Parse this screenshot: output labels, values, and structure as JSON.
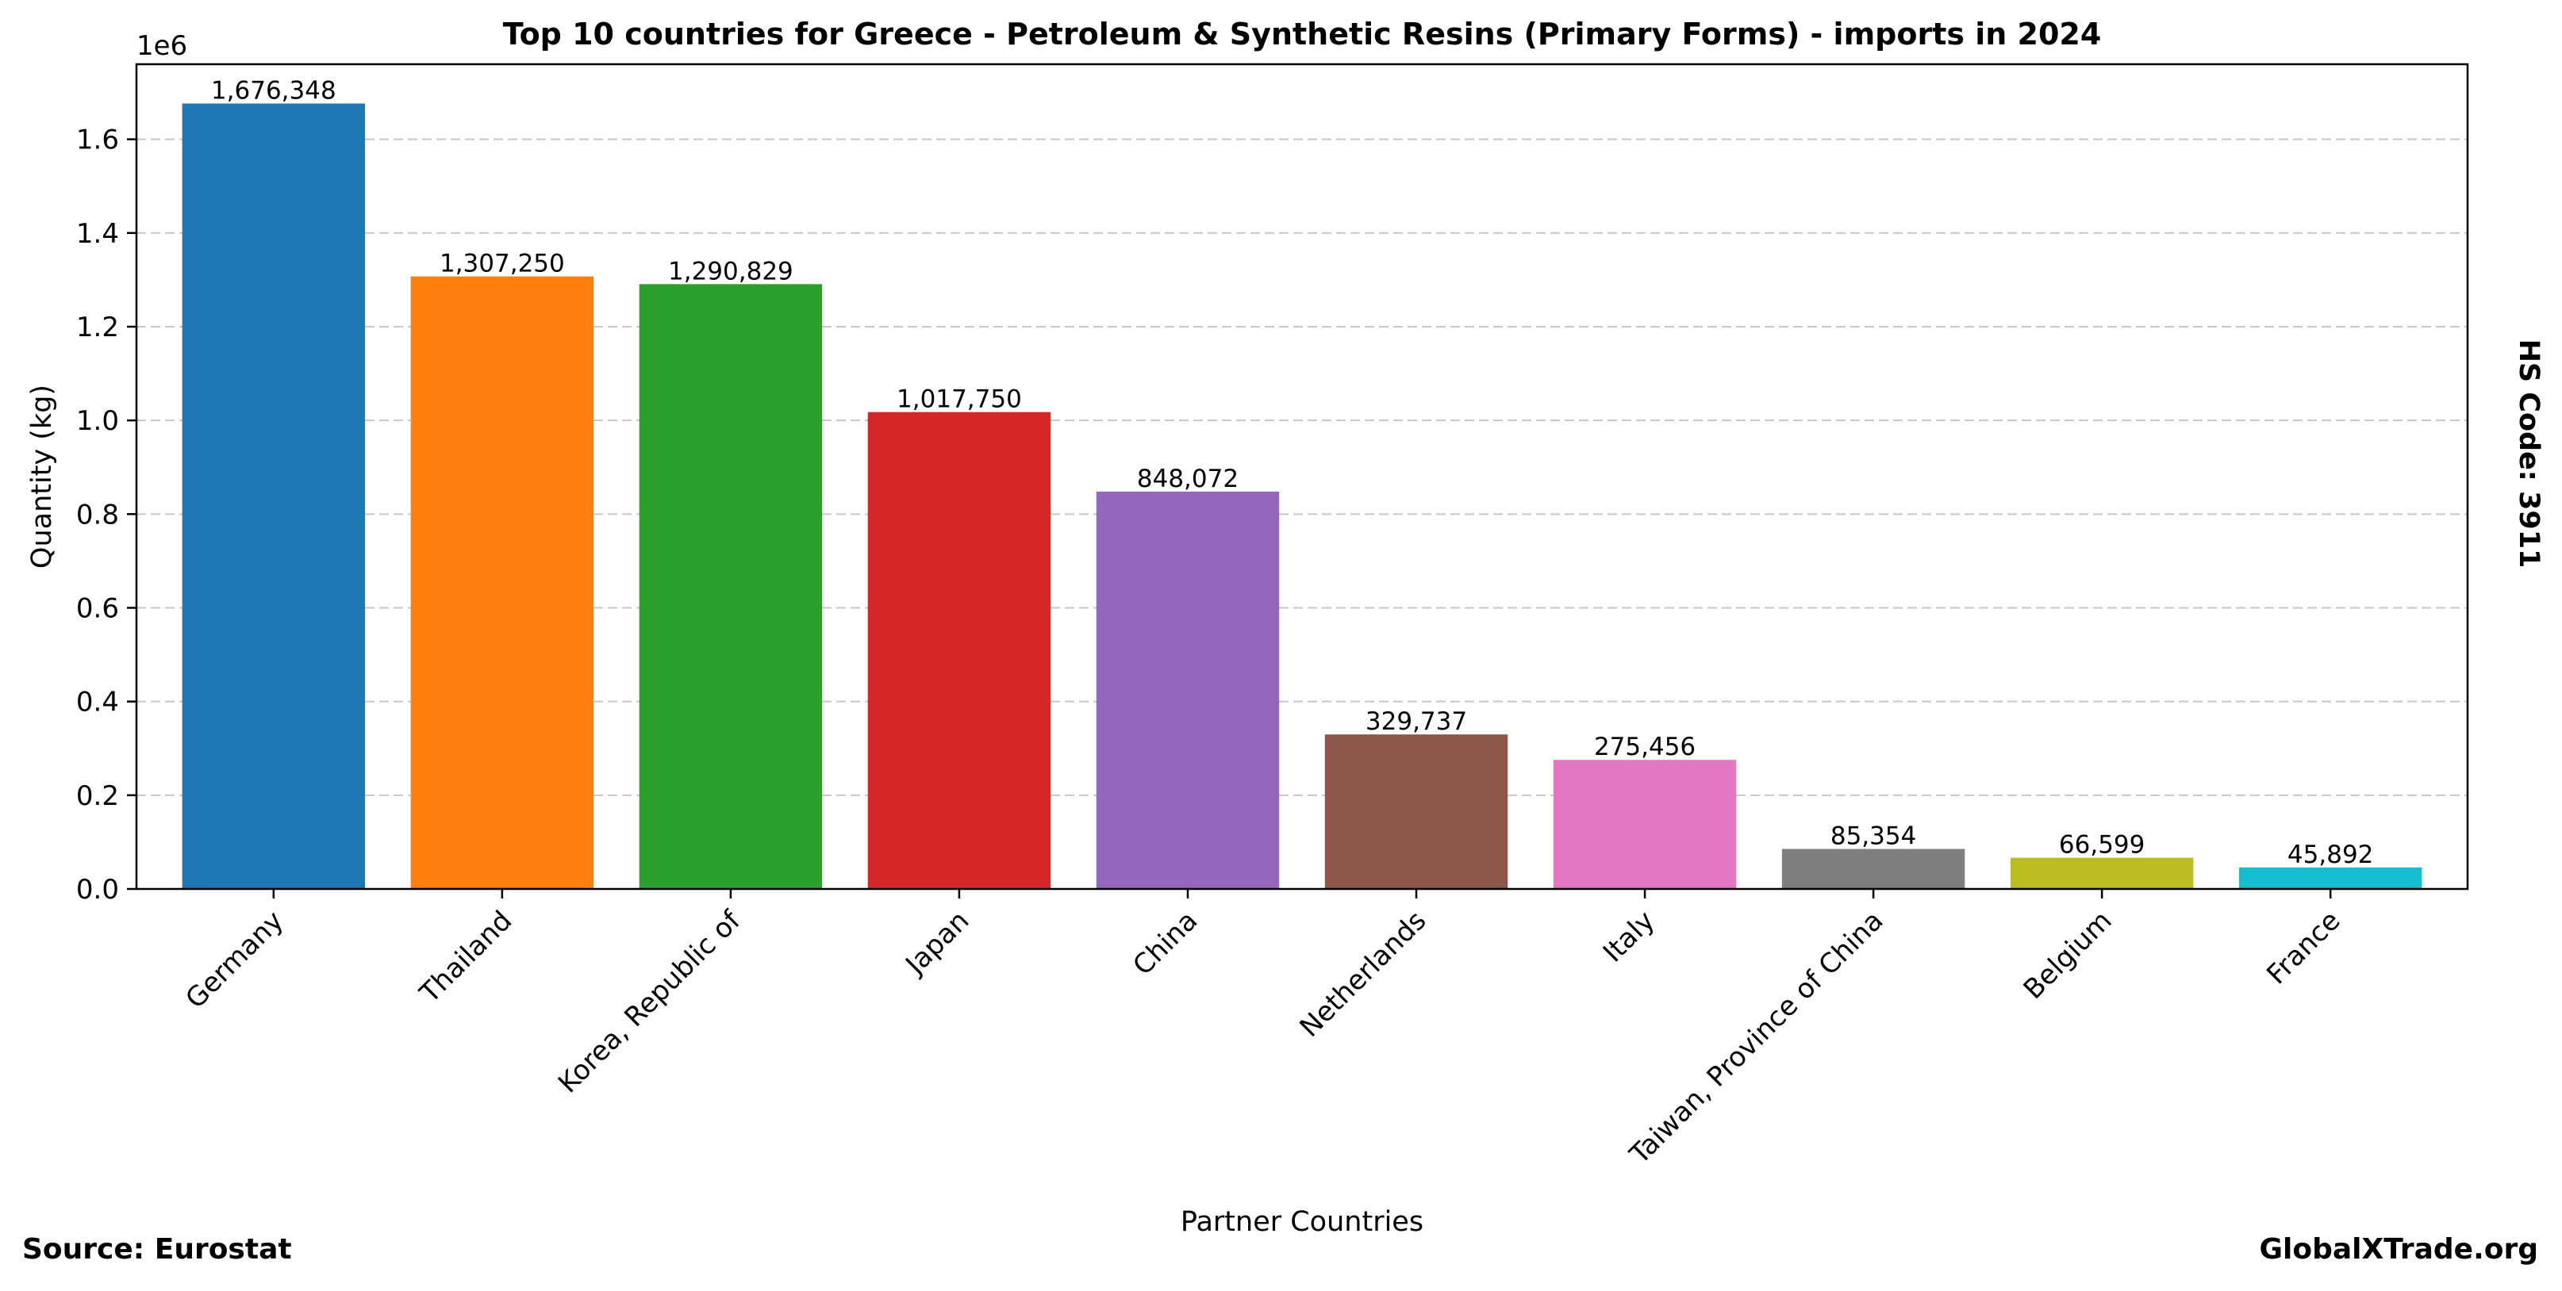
{
  "chart_data": {
    "type": "bar",
    "title": "Top 10 countries for Greece - Petroleum & Synthetic Resins (Primary Forms) - imports in 2024",
    "xlabel": "Partner Countries",
    "ylabel": "Quantity (kg)",
    "y_offset_label": "1e6",
    "y_scale_factor": 1000000,
    "categories": [
      "Germany",
      "Thailand",
      "Korea, Republic of",
      "Japan",
      "China",
      "Netherlands",
      "Italy",
      "Taiwan, Province of China",
      "Belgium",
      "France"
    ],
    "values": [
      1676348,
      1307250,
      1290829,
      1017750,
      848072,
      329737,
      275456,
      85354,
      66599,
      45892
    ],
    "value_labels": [
      "1,676,348",
      "1,307,250",
      "1,290,829",
      "1,017,750",
      "848,072",
      "329,737",
      "275,456",
      "85,354",
      "66,599",
      "45,892"
    ],
    "colors": [
      "#1f77b4",
      "#ff7f0e",
      "#2ca02c",
      "#d62728",
      "#9467bd",
      "#8c564b",
      "#e377c2",
      "#7f7f7f",
      "#bcbd22",
      "#17becf"
    ],
    "ylim": [
      0,
      1760165
    ],
    "y_ticks": [
      0,
      200000,
      400000,
      600000,
      800000,
      1000000,
      1200000,
      1400000,
      1600000
    ],
    "y_tick_labels": [
      "0.0",
      "0.2",
      "0.4",
      "0.6",
      "0.8",
      "1.0",
      "1.2",
      "1.4",
      "1.6"
    ],
    "grid": "y-dashed",
    "legend": "none"
  },
  "side_label": "HS Code: 3911",
  "footer": {
    "source": "Source: Eurostat",
    "brand": "GlobalXTrade.org"
  }
}
